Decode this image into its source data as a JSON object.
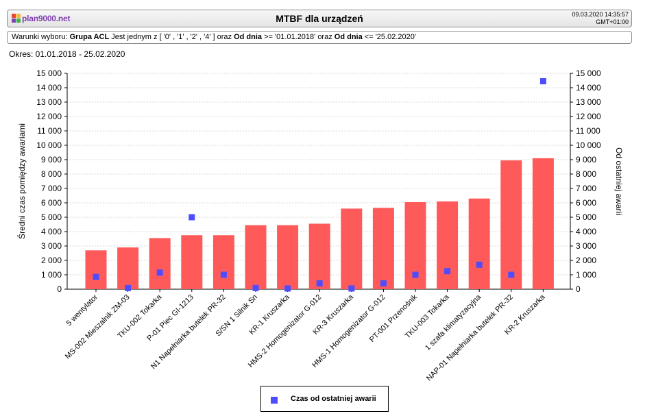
{
  "header": {
    "logo_text": "plan9000.net",
    "title": "MTBF dla urządzeń",
    "timestamp_line1": "09.03.2020 14:35:57",
    "timestamp_line2": "GMT+01:00",
    "logo_colors": [
      "#e8462d",
      "#f5b82e",
      "#7f3fb0",
      "#3cb44a"
    ]
  },
  "filter": {
    "prefix": "Warunki wyboru: ",
    "field1": "Grupa ACL",
    "part1": " Jest jednym z [ '0' , '1' , '2' , '4' ] oraz ",
    "field2": "Od dnia",
    "part2": " >= '01.01.2018' oraz ",
    "field3": "Od dnia",
    "part3": " <= '25.02.2020'"
  },
  "period": "Okres: 01.01.2018 - 25.02.2020",
  "chart_data": {
    "type": "bar",
    "categories": [
      "5 wentylator",
      "MS-002 Mieszalnik ZM-03",
      "TKU-002 Tokarka",
      "P-01 Piec GI-1213",
      "N1 Napełniarka butelek PR-32",
      "S/SN 1 Silnik Sn",
      "KR-1 Kruszarka",
      "HMS-2 Homogenizator G-012",
      "KR-3 Kruszarka",
      "HMS-1 Homogenizator G-012",
      "PT-001 Przenośnik",
      "TKU-003 Tokarka",
      "1 szafa klimatyzacyjna",
      "NAP-01 Napełniarka butelek PR-32",
      "KR-2 Kruszarka"
    ],
    "series": [
      {
        "type": "bar",
        "axis": "left",
        "color": "#ff5a5a",
        "values": [
          2700,
          2900,
          3550,
          3750,
          3750,
          4450,
          4450,
          4550,
          5600,
          5650,
          6050,
          6100,
          6300,
          8950,
          9100
        ]
      },
      {
        "name": "Czas od ostatniej awarii",
        "type": "scatter",
        "axis": "right",
        "color": "#4d4dff",
        "values": [
          850,
          80,
          1150,
          5000,
          1000,
          80,
          50,
          400,
          50,
          400,
          1000,
          1250,
          1700,
          1000,
          14450
        ]
      }
    ],
    "ylabel": "Średni czas pomiędzy awariami",
    "y2label": "Od ostatniej awarii",
    "ylim": [
      0,
      15000
    ],
    "y2lim": [
      0,
      15000
    ],
    "yticks": [
      "0",
      "1 000",
      "2 000",
      "3 000",
      "4 000",
      "5 000",
      "6 000",
      "7 000",
      "8 000",
      "9 000",
      "10 000",
      "11 000",
      "12 000",
      "13 000",
      "14 000",
      "15 000"
    ],
    "grid": true,
    "legend": "bottom-center"
  }
}
